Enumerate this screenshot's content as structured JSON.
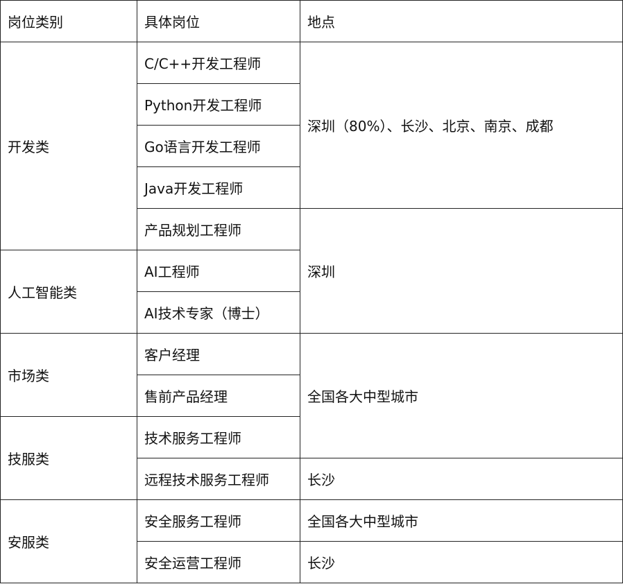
{
  "header": [
    "岗位类别",
    "具体岗位",
    "地点"
  ],
  "categories": [
    "开发类",
    "人工智能类",
    "市场类",
    "技服类",
    "安服类"
  ],
  "positions": [
    "C/C++开发工程师",
    "Python开发工程师",
    "Go语言开发工程师",
    "Java开发工程师",
    "产品规划工程师",
    "AI工程师",
    "AI技术专家（博士）",
    "客户经理",
    "售前产品经理",
    "技术服务工程师",
    "远程技术服务工程师",
    "安全服务工程师",
    "安全运营工程师"
  ],
  "locations": [
    "深圳（80%）、长沙、北京、南京、成都",
    "深圳",
    "全国各大中型城市",
    "长沙",
    "全国各大中型城市",
    "长沙"
  ]
}
